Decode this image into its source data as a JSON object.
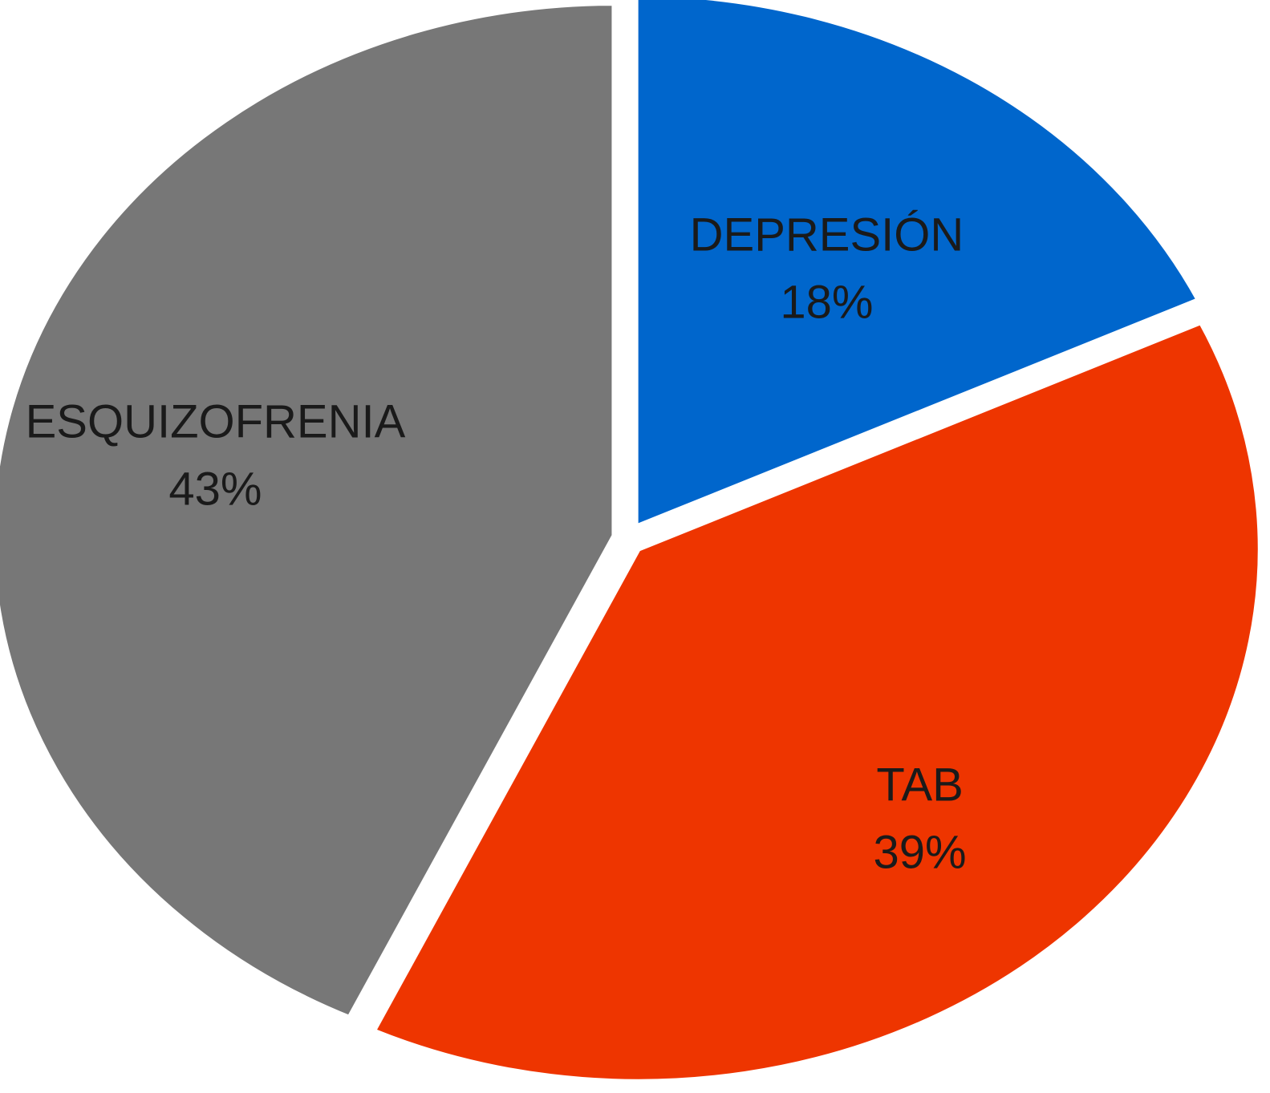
{
  "chart_data": {
    "type": "pie",
    "title": "",
    "legend": "none",
    "slices": [
      {
        "label": "DEPRESIÓN",
        "value": 18,
        "value_label": "18%",
        "color": "#0066CC"
      },
      {
        "label": "TAB",
        "value": 39,
        "value_label": "39%",
        "color": "#EE3500"
      },
      {
        "label": "ESQUIZOFRENIA",
        "value": 43,
        "value_label": "43%",
        "color": "#777777"
      }
    ]
  }
}
